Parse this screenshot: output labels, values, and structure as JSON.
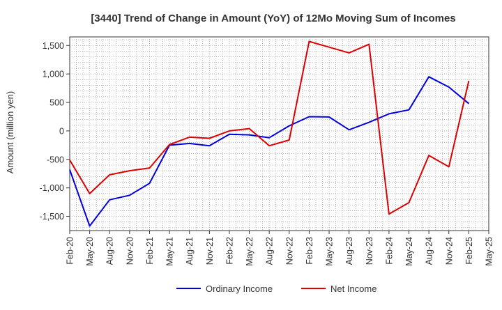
{
  "chart_data": {
    "type": "line",
    "title": "[3440]  Trend of Change in Amount (YoY) of 12Mo Moving Sum of Incomes",
    "xlabel": "",
    "ylabel": "Amount (million yen)",
    "ylim": [
      -1750,
      1650
    ],
    "yticks": [
      -1500,
      -1000,
      -500,
      0,
      500,
      1000,
      1500
    ],
    "ytick_labels": [
      "-1,500",
      "-1,000",
      "-500",
      "0",
      "500",
      "1,000",
      "1,500"
    ],
    "categories": [
      "Feb-20",
      "May-20",
      "Aug-20",
      "Nov-20",
      "Feb-21",
      "May-21",
      "Aug-21",
      "Nov-21",
      "Feb-22",
      "May-22",
      "Aug-22",
      "Nov-22",
      "Feb-23",
      "May-23",
      "Aug-23",
      "Nov-23",
      "Feb-24",
      "May-24",
      "Aug-24",
      "Nov-24",
      "Feb-25",
      "May-25"
    ],
    "grid": true,
    "legend_position": "bottom",
    "series": [
      {
        "name": "Ordinary Income",
        "color": "#0000dd",
        "values": [
          -680,
          -1670,
          -1210,
          -1130,
          -920,
          -250,
          -220,
          -260,
          -60,
          -70,
          -120,
          90,
          250,
          245,
          20,
          150,
          300,
          370,
          950,
          770,
          480,
          null
        ]
      },
      {
        "name": "Net Income",
        "color": "#dd0000",
        "values": [
          -510,
          -1100,
          -770,
          -700,
          -650,
          -240,
          -110,
          -130,
          0,
          40,
          -260,
          -160,
          1570,
          1470,
          1370,
          1520,
          -1460,
          -1260,
          -430,
          -630,
          880,
          null
        ]
      }
    ]
  }
}
